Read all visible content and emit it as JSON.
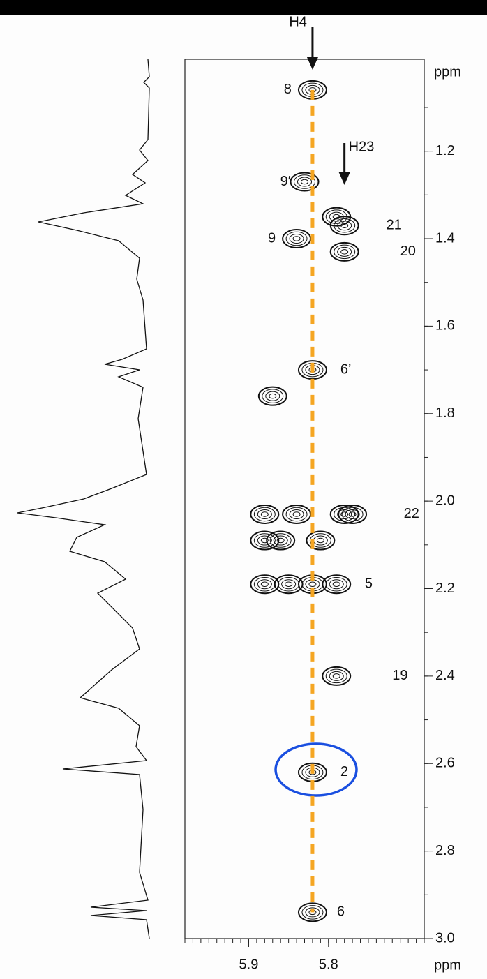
{
  "chart_data": {
    "type": "nmr2d",
    "x_label": "ppm",
    "y_label": "ppm",
    "xlim": [
      5.98,
      5.68
    ],
    "ylim": [
      0.99,
      3.0
    ],
    "xticks": [
      5.9,
      5.8
    ],
    "yticks": [
      1.2,
      1.4,
      1.6,
      1.8,
      {
        "value": 2,
        "label": "2.0"
      },
      2.2,
      2.4,
      2.6,
      2.8,
      {
        "value": 3,
        "label": "3.0"
      }
    ],
    "guide_x": 5.82,
    "guide_color": "#f5a623",
    "arrows": [
      {
        "text": "H4",
        "x": 5.82
      },
      {
        "text": "H23",
        "x": 5.78
      }
    ],
    "peaks": [
      {
        "label": "8",
        "x": 5.82,
        "y": 1.06
      },
      {
        "label": "9′",
        "x": 5.83,
        "y": 1.27
      },
      {
        "label": "21",
        "x": 5.78,
        "y": 1.37
      },
      {
        "label": "9",
        "x": 5.84,
        "y": 1.4
      },
      {
        "label": "20",
        "x": 5.78,
        "y": 1.43
      },
      {
        "label": "6’",
        "x": 5.82,
        "y": 1.7
      },
      {
        "label": "22",
        "x": 5.78,
        "y": 2.03
      },
      {
        "label": "5",
        "x": 5.82,
        "y": 2.19
      },
      {
        "label": "19",
        "x": 5.79,
        "y": 2.4
      },
      {
        "label": "2",
        "x": 5.82,
        "y": 2.62
      },
      {
        "label": "6",
        "x": 5.82,
        "y": 2.94
      }
    ],
    "contours": {
      "x": [
        5.87,
        5.88,
        5.88,
        5.86,
        5.81,
        5.88,
        5.85,
        5.79,
        5.77,
        5.84,
        5.79
      ],
      "y": [
        1.76,
        2.03,
        2.09,
        2.09,
        2.09,
        2.19,
        2.19,
        2.19,
        2.03,
        2.03,
        1.35
      ]
    }
  }
}
